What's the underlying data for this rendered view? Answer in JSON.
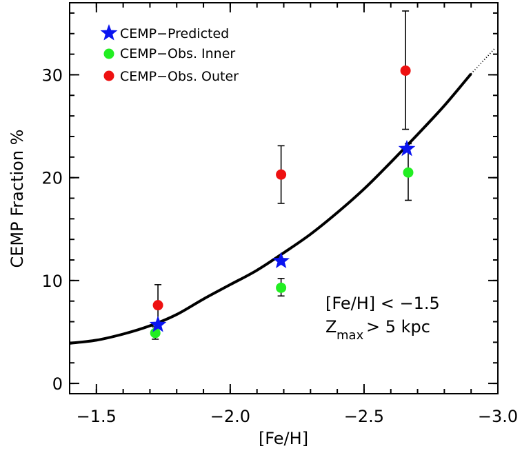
{
  "chart_data": {
    "type": "scatter",
    "xlabel": "[Fe/H]",
    "ylabel": "CEMP Fraction %",
    "xlim": [
      -1.4,
      -3.0
    ],
    "ylim": [
      -1,
      37
    ],
    "x_ticks": [
      -1.5,
      -2.0,
      -2.5,
      -3.0
    ],
    "x_tick_labels": [
      "−1.5",
      "−2.0",
      "−2.5",
      "−3.0"
    ],
    "y_ticks": [
      0,
      10,
      20,
      30
    ],
    "y_tick_labels": [
      "0",
      "10",
      "20",
      "30"
    ],
    "grid": false,
    "legend_position": "top-left",
    "colors": {
      "predicted": "#0a14f0",
      "inner": "#22ee22",
      "outer": "#ee1111",
      "curve": "#000000"
    },
    "series": [
      {
        "name": "CEMP−Predicted",
        "marker": "star",
        "points": [
          {
            "x": -1.73,
            "y": 5.7
          },
          {
            "x": -2.19,
            "y": 11.9
          },
          {
            "x": -2.66,
            "y": 22.8
          }
        ]
      },
      {
        "name": "CEMP−Obs. Inner",
        "marker": "circle",
        "points": [
          {
            "x": -1.72,
            "y": 4.9,
            "err_lo": 4.3,
            "err_hi": 5.5
          },
          {
            "x": -2.19,
            "y": 9.3,
            "err_lo": 8.5,
            "err_hi": 10.2
          },
          {
            "x": -2.665,
            "y": 20.5,
            "err_lo": 17.8,
            "err_hi": 23.3
          }
        ]
      },
      {
        "name": "CEMP−Obs. Outer",
        "marker": "circle",
        "points": [
          {
            "x": -1.73,
            "y": 7.6,
            "err_lo": 5.7,
            "err_hi": 9.6
          },
          {
            "x": -2.19,
            "y": 20.3,
            "err_lo": 17.5,
            "err_hi": 23.1
          },
          {
            "x": -2.655,
            "y": 30.4,
            "err_lo": 24.7,
            "err_hi": 36.2
          }
        ]
      }
    ],
    "fit_curve": {
      "x": [
        -1.4,
        -1.5,
        -1.6,
        -1.7,
        -1.8,
        -1.9,
        -2.0,
        -2.1,
        -2.2,
        -2.3,
        -2.4,
        -2.5,
        -2.6,
        -2.7,
        -2.8,
        -2.9
      ],
      "y": [
        3.9,
        4.2,
        4.8,
        5.6,
        6.7,
        8.2,
        9.6,
        11.0,
        12.7,
        14.5,
        16.6,
        18.9,
        21.5,
        24.2,
        27.0,
        30.1
      ]
    },
    "annotations": [
      "[Fe/H] < −1.5",
      "Z",
      "max",
      "> 5 kpc"
    ]
  }
}
